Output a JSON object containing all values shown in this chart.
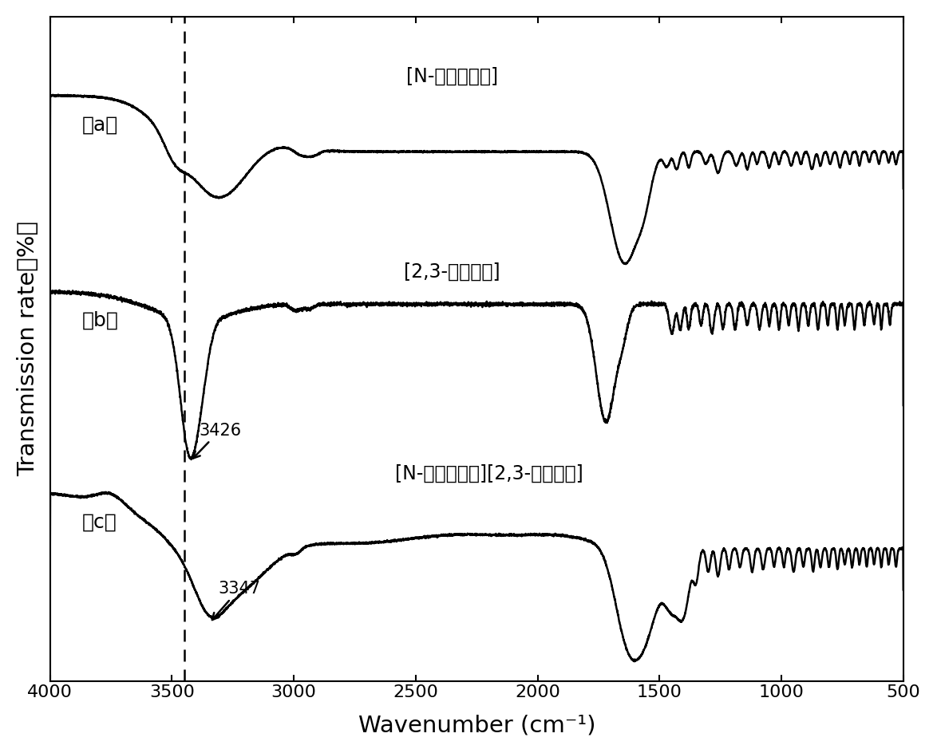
{
  "title": "",
  "xlabel": "Wavenumber (cm⁻¹)",
  "ylabel": "Transmission rate（%）",
  "xlim": [
    4000,
    500
  ],
  "x_ticks": [
    4000,
    3500,
    3000,
    2500,
    2000,
    1500,
    1000,
    500
  ],
  "dashed_line_x": 3450,
  "label_a": "（a）",
  "label_b": "（b）",
  "label_c": "（c）",
  "annotation_a": "[N-甲基乙酰胺]",
  "annotation_b": "[2,3-二渴丙酸]",
  "annotation_c": "[N-甲基乙酰胺][2,3-二渴丙酸]",
  "peak_b_label": "3426",
  "peak_c_label": "3347",
  "background_color": "#ffffff",
  "line_color": "#000000"
}
